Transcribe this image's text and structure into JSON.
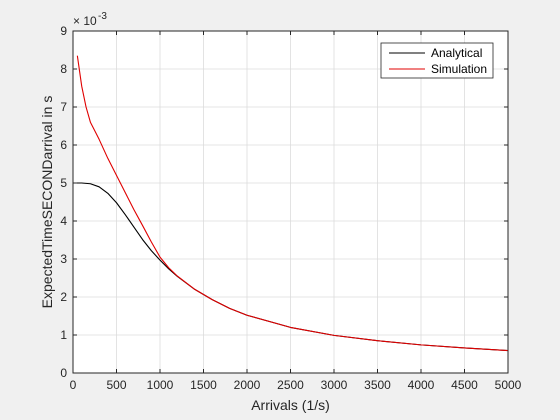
{
  "chart_data": {
    "type": "line",
    "title": "",
    "xlabel": "Arrivals (1/s)",
    "ylabel": "ExpectedTimeSECONDarrival in s",
    "y_exponent_label": "× 10",
    "y_exponent_power": "-3",
    "y_scale_factor": 0.001,
    "xlim": [
      0,
      5000
    ],
    "ylim": [
      0,
      9
    ],
    "xticks": [
      0,
      500,
      1000,
      1500,
      2000,
      2500,
      3000,
      3500,
      4000,
      4500,
      5000
    ],
    "yticks": [
      0,
      1,
      2,
      3,
      4,
      5,
      6,
      7,
      8,
      9
    ],
    "grid": true,
    "legend_position": "top-right",
    "series": [
      {
        "name": "Analytical",
        "color": "#000000",
        "x": [
          0,
          100,
          200,
          300,
          400,
          500,
          600,
          700,
          800,
          900,
          1000,
          1100,
          1200,
          1400,
          1600,
          1800,
          2000,
          2500,
          3000,
          3500,
          4000,
          4500,
          5000
        ],
        "y": [
          5.0,
          5.0,
          4.98,
          4.9,
          4.73,
          4.48,
          4.17,
          3.84,
          3.51,
          3.22,
          2.97,
          2.74,
          2.54,
          2.2,
          1.93,
          1.7,
          1.52,
          1.2,
          0.99,
          0.85,
          0.74,
          0.66,
          0.59
        ]
      },
      {
        "name": "Simulation",
        "color": "#e00000",
        "x": [
          50,
          100,
          150,
          200,
          300,
          400,
          500,
          600,
          700,
          800,
          900,
          1000,
          1100,
          1200,
          1400,
          1600,
          1800,
          2000,
          2500,
          3000,
          3500,
          4000,
          4500,
          5000
        ],
        "y": [
          8.35,
          7.55,
          7.0,
          6.6,
          6.15,
          5.65,
          5.2,
          4.75,
          4.3,
          3.88,
          3.45,
          3.05,
          2.77,
          2.55,
          2.2,
          1.93,
          1.7,
          1.52,
          1.2,
          0.99,
          0.85,
          0.74,
          0.66,
          0.59
        ]
      }
    ]
  }
}
